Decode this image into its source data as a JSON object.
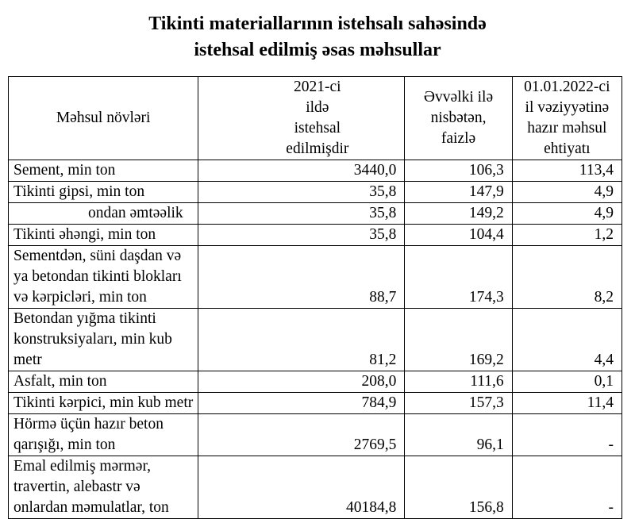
{
  "title": {
    "line1": "Tikinti materiallarının istehsalı sahəsində",
    "line2": "istehsal edilmiş əsas məhsullar"
  },
  "table": {
    "headers": [
      "Məhsul növləri",
      "2021-ci ildə istehsal edilmişdir",
      "Əvvəlki ilə nisbətən, faizlə",
      "01.01.2022-ci il vəziyyətinə hazır məhsul ehtiyatı"
    ],
    "rows": [
      {
        "name": "Sement, min ton",
        "produced": "3440,0",
        "percent": "106,3",
        "stock": "113,4"
      },
      {
        "name": "Tikinti gipsi, min ton",
        "produced": "35,8",
        "percent": "147,9",
        "stock": "4,9"
      },
      {
        "name": "ondan əmtəəlik",
        "produced": "35,8",
        "percent": "149,2",
        "stock": "4,9"
      },
      {
        "name": "Tikinti əhəngi, min ton",
        "produced": "35,8",
        "percent": "104,4",
        "stock": "1,2"
      },
      {
        "name": "Sementdən, süni daşdan və ya betondan tikinti blokları və kərpicləri, min ton",
        "produced": "88,7",
        "percent": "174,3",
        "stock": "8,2"
      },
      {
        "name": "Betondan yığma tikinti konstruksiyaları, min kub metr",
        "produced": "81,2",
        "percent": "169,2",
        "stock": "4,4"
      },
      {
        "name": "Asfalt, min ton",
        "produced": "208,0",
        "percent": "111,6",
        "stock": "0,1"
      },
      {
        "name": "Tikinti kərpici, min kub metr",
        "produced": "784,9",
        "percent": "157,3",
        "stock": "11,4"
      },
      {
        "name": "Hörmə üçün hazır beton qarışığı, min ton",
        "produced": "2769,5",
        "percent": "96,1",
        "stock": "-"
      },
      {
        "name": "Emal edilmiş mərmər, travertin, alebastr və onlardan məmulatlar, ton",
        "produced": "40184,8",
        "percent": "156,8",
        "stock": "-"
      }
    ]
  }
}
